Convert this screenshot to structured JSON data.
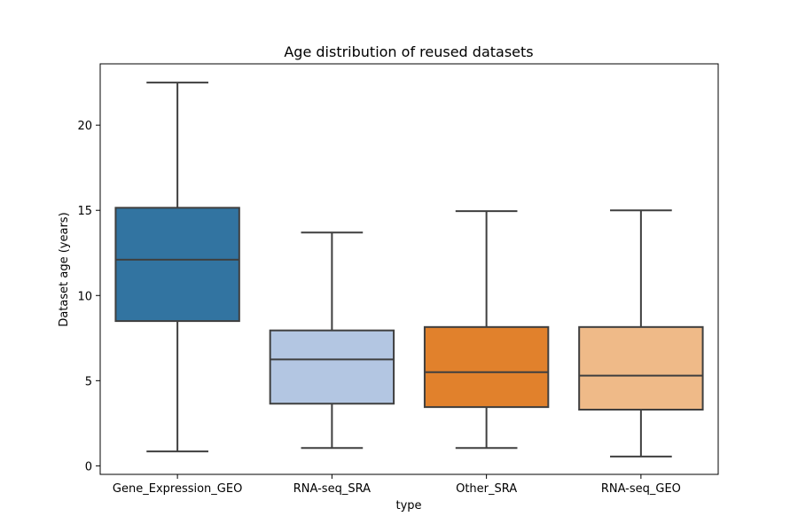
{
  "chart_data": {
    "type": "box",
    "title": "Age distribution of reused datasets",
    "xlabel": "type",
    "ylabel": "Dataset age (years)",
    "ylim": [
      -0.5,
      23.6
    ],
    "yticks": [
      0,
      5,
      10,
      15,
      20
    ],
    "grid": false,
    "categories": [
      "Gene_Expression_GEO",
      "RNA-seq_SRA",
      "Other_SRA",
      "RNA-seq_GEO"
    ],
    "boxes": [
      {
        "category": "Gene_Expression_GEO",
        "whisker_low": 0.85,
        "q1": 8.5,
        "median": 12.1,
        "q3": 15.15,
        "whisker_high": 22.5,
        "color": "#3274a1"
      },
      {
        "category": "RNA-seq_SRA",
        "whisker_low": 1.05,
        "q1": 3.65,
        "median": 6.25,
        "q3": 7.95,
        "whisker_high": 13.7,
        "color": "#b3c6e2"
      },
      {
        "category": "Other_SRA",
        "whisker_low": 1.05,
        "q1": 3.45,
        "median": 5.5,
        "q3": 8.15,
        "whisker_high": 14.95,
        "color": "#e1812c"
      },
      {
        "category": "RNA-seq_GEO",
        "whisker_low": 0.55,
        "q1": 3.3,
        "median": 5.3,
        "q3": 8.15,
        "whisker_high": 15.0,
        "color": "#efba88"
      }
    ],
    "line_color": "#3f3f3f"
  }
}
